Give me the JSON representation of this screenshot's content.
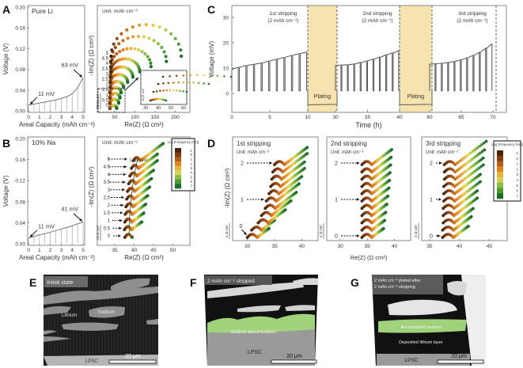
{
  "panel_letters": [
    "A",
    "B",
    "C",
    "D",
    "E",
    "F",
    "G"
  ],
  "colors": {
    "frequency_scale": [
      "#1b6e2a",
      "#6fb23c",
      "#e6d75a",
      "#e98a20",
      "#a0501a",
      "#4a2308"
    ],
    "plating_band": "#f6e3b0",
    "sodium_overlay": "#9fd27a"
  },
  "chart_data": [
    {
      "panel": "A",
      "type": "line",
      "title": "Pure Li",
      "xlabel": "Areal Capacity (mAh cm⁻²)",
      "ylabel": "Voltage (V)",
      "xlim": [
        0,
        5
      ],
      "ylim": [
        0,
        0.2
      ],
      "xticks": [
        "0",
        "1",
        "2",
        "3",
        "4",
        "5"
      ],
      "yticks": [
        "0.00",
        "0.04",
        "0.08",
        "0.12",
        "0.16",
        "0.20"
      ],
      "x": [
        0,
        0.5,
        1,
        1.5,
        2,
        2.5,
        3,
        3.5,
        4,
        4.5,
        5
      ],
      "y": [
        0.011,
        0.013,
        0.015,
        0.017,
        0.019,
        0.021,
        0.024,
        0.027,
        0.033,
        0.045,
        0.063
      ],
      "annotations": [
        {
          "text": "11 mV",
          "x": 0,
          "y": 0.011
        },
        {
          "text": "63 mV",
          "x": 5,
          "y": 0.063
        }
      ]
    },
    {
      "panel": "A",
      "type": "scatter",
      "unit_label": "Unit: mAh cm⁻²",
      "xlabel": "Re(Z) (Ω cm²)",
      "ylabel": "-Im(Z) (Ω cm²)",
      "xlim": [
        5,
        235
      ],
      "xticks": [
        50,
        100,
        150,
        200
      ],
      "scale_bar": "50 Ω cm²",
      "capacities": [
        "0",
        "0.5",
        "1",
        "1.5",
        "2",
        "2.5",
        "3",
        "3.5",
        "4",
        "4.5",
        "5"
      ],
      "arc_start_re": [
        38,
        38,
        38,
        38,
        39,
        39,
        39,
        40,
        40,
        40,
        41
      ],
      "arc_end_re": [
        55,
        60,
        63,
        66,
        72,
        82,
        95,
        112,
        140,
        178,
        215
      ],
      "inset": {
        "xticks": [
          30,
          40,
          50,
          60
        ],
        "scale_bar": "10 Ω cm²"
      }
    },
    {
      "panel": "B",
      "type": "line",
      "title": "10% Na",
      "xlabel": "Areal Capacity (mAh cm⁻²)",
      "ylabel": "Voltage (V)",
      "xlim": [
        0,
        5
      ],
      "ylim": [
        0,
        0.2
      ],
      "xticks": [
        "0",
        "1",
        "2",
        "3",
        "4",
        "5"
      ],
      "yticks": [
        "0.00",
        "0.04",
        "0.08",
        "0.12",
        "0.16",
        "0.20"
      ],
      "x": [
        0,
        0.5,
        1,
        1.5,
        2,
        2.5,
        3,
        3.5,
        4,
        4.5,
        5
      ],
      "y": [
        0.011,
        0.014,
        0.017,
        0.019,
        0.022,
        0.025,
        0.028,
        0.031,
        0.034,
        0.038,
        0.041
      ],
      "annotations": [
        {
          "text": "11 mV",
          "x": 0,
          "y": 0.011
        },
        {
          "text": "41 mV",
          "x": 5,
          "y": 0.041
        }
      ]
    },
    {
      "panel": "B",
      "type": "scatter",
      "unit_label": "Unit: mAh cm⁻²",
      "xlabel": "Re(Z) (Ω cm²)",
      "ylabel": "-Im(Z) (Ω cm²)",
      "xlim": [
        33,
        52
      ],
      "xticks": [
        35,
        40,
        45,
        50
      ],
      "scale_bar": "10 Ω cm²",
      "annotation": "1–10 kHz",
      "capacities": [
        "0",
        "0.5",
        "1",
        "1.5",
        "2",
        "2.5",
        "3",
        "3.5",
        "4",
        "4.5",
        "5"
      ],
      "start_re": [
        37.6,
        37.5,
        37.6,
        37.7,
        37.9,
        38.1,
        38.3,
        38.6,
        38.9,
        39.3,
        39.8
      ],
      "end_re": [
        39.5,
        42,
        42.5,
        43,
        43.5,
        44,
        44.5,
        45,
        46,
        46,
        47.5
      ],
      "legend": {
        "title": "Log [Frequency (Hz)]",
        "ticks": [
          "-1",
          "0",
          "1",
          "2",
          "3",
          "4",
          "5",
          "6",
          "7"
        ]
      }
    },
    {
      "panel": "C",
      "type": "line",
      "xlabel": "Time (h)",
      "ylabel": "Voltage (mV)",
      "xticks": [
        "0",
        "5",
        "10",
        "30",
        "35",
        "40",
        "60",
        "65",
        "70"
      ],
      "yticks": [
        "0",
        "10",
        "20",
        "30"
      ],
      "ylim": [
        -7,
        35
      ],
      "stripping": [
        {
          "label": "1st stripping",
          "sub": "(2 mAh cm⁻²)",
          "t_start": 0,
          "tops": [
            9.5,
            10.3,
            11,
            11.5,
            12,
            12.8,
            13.5,
            14.2,
            15,
            15.7,
            16.3
          ]
        },
        {
          "label": "2nd stripping",
          "sub": "(2 mAh cm⁻²)",
          "t_start": 30,
          "tops": [
            11,
            11.2,
            11.3,
            11.6,
            12.2,
            12.8,
            13.5,
            14.3,
            15.2,
            16,
            16.8
          ]
        },
        {
          "label": "3rd stripping",
          "sub": "(2 mAh cm⁻²)",
          "t_start": 60,
          "tops": [
            11.5,
            11.7,
            11.9,
            12.2,
            12.6,
            13.2,
            14,
            15,
            16.2,
            17.8,
            19.5
          ]
        }
      ],
      "rest_voltage": 1,
      "plating": [
        {
          "label": "Plating",
          "voltage": -4.5
        },
        {
          "label": "Plating",
          "voltage": -4.5
        }
      ]
    },
    {
      "panel": "D",
      "type": "scatter",
      "xlabel": "Re(Z) (Ω cm²)",
      "ylabel": "-Im(Z) (Ω cm²)",
      "scale_bar": "4 Ω cm²",
      "capacity_marks": [
        "0",
        "1",
        "2"
      ],
      "legend": {
        "title": "Log [Frequency (Hz)]",
        "ticks": [
          "-1",
          "0",
          "1",
          "2",
          "3",
          "4",
          "5",
          "6",
          "7"
        ]
      },
      "panels": [
        {
          "title": "1st stripping",
          "unit_label": "Unit: mAh cm⁻²",
          "xticks": [
            30,
            35,
            40
          ],
          "xlim": [
            27.3,
            43
          ],
          "start_re": [
            30,
            30.8,
            32,
            32.6,
            33.3,
            33.5,
            34,
            34.3,
            34.5,
            34.7,
            35
          ],
          "end_re": [
            34,
            35,
            37,
            38,
            39,
            39.5,
            40,
            40.5,
            40.5,
            41,
            41
          ]
        },
        {
          "title": "2nd stripping",
          "unit_label": "Unit: mAh cm⁻²",
          "xticks": [
            30,
            35,
            40
          ],
          "xlim": [
            27.5,
            43
          ],
          "start_re": [
            34,
            34,
            34,
            34,
            34,
            34,
            34,
            34,
            34,
            34,
            34
          ],
          "end_re": [
            38,
            38.2,
            38.4,
            38.6,
            38.8,
            39,
            39.1,
            39.2,
            39.3,
            39.4,
            39.5
          ]
        },
        {
          "title": "3rd stripping",
          "unit_label": "Unit: mAh cm⁻²",
          "xticks": [
            35,
            40,
            45
          ],
          "xlim": [
            33.7,
            48
          ],
          "start_re": [
            37.2,
            37.2,
            37.3,
            37.3,
            37.3,
            37.4,
            37.4,
            37.4,
            37.5,
            37.5,
            37.5
          ],
          "end_re": [
            41.5,
            42,
            42.3,
            43,
            43,
            43.5,
            43.5,
            44,
            44,
            44.2,
            44.5
          ]
        }
      ]
    }
  ],
  "microscopy": {
    "E": {
      "state": "Initial state",
      "lithium": "Lithium",
      "sodium": "Sodium",
      "lpsc": "LPSC",
      "scale": "20 μm"
    },
    "F": {
      "state": "2 mAh cm⁻² stripped",
      "layer": "Sodium accumulation",
      "lpsc": "LPSC",
      "scale": "20 μm"
    },
    "G": {
      "state_line1": "2 mAh cm⁻² plated after",
      "state_line2": "2 mAh cm⁻² stripping",
      "layer": "Accumulated sodium",
      "deposit": "Deposited lithium layer",
      "lpsc": "LPSC",
      "scale": "20 μm"
    }
  }
}
